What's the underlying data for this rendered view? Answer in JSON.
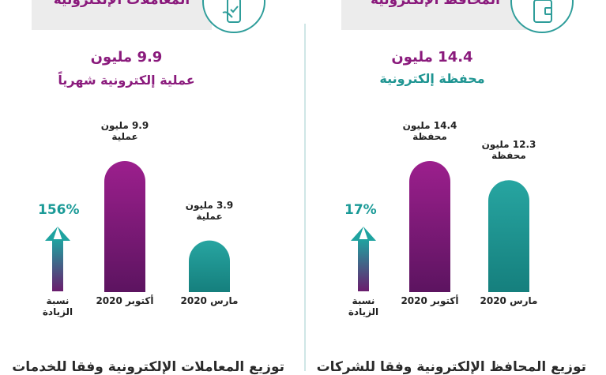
{
  "colors": {
    "purple": "#8a1a7c",
    "teal": "#1f9592",
    "dark_purple": "#5a1a60"
  },
  "left_panel": {
    "header": "المعاملات الإلكترونية",
    "headline_value": "9.9 مليون",
    "subtitle": "عملية إلكترونية شهرياً",
    "increase_label": "نسبة الزيادة",
    "footer": "توزيع المعاملات الإلكترونية وفقا للخدمات"
  },
  "right_panel": {
    "header": "المحافظ الإلكترونية",
    "headline_value": "14.4 مليون",
    "subtitle": "محفظة إلكترونية",
    "increase_label": "نسبة الزيادة",
    "footer": "توزيع المحافظ الإلكترونية وفقا للشركات"
  },
  "chart_data": [
    {
      "type": "bar",
      "categories": [
        "أكتوبر 2020",
        "مارس 2020"
      ],
      "values": [
        9.9,
        3.9
      ],
      "value_labels": [
        "9.9 مليون عملية",
        "3.9 مليون عملية"
      ],
      "increase": "156%",
      "ylim": [
        0,
        9.9
      ],
      "grid": false
    },
    {
      "type": "bar",
      "categories": [
        "أكتوبر 2020",
        "مارس 2020"
      ],
      "values": [
        14.4,
        12.3
      ],
      "value_labels": [
        "14.4 مليون محفظة",
        "12.3 مليون محفظة"
      ],
      "increase": "17%",
      "ylim": [
        0,
        14.4
      ],
      "grid": false
    }
  ]
}
